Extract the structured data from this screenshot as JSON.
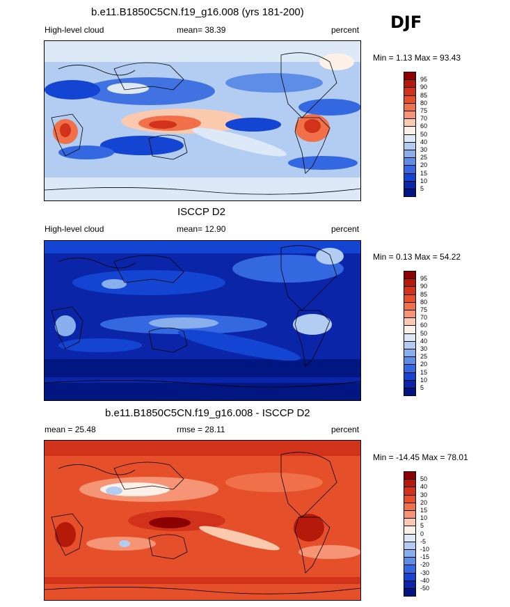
{
  "season": "DJF",
  "panels": [
    {
      "id": "model",
      "title": "b.e11.B1850C5CN.f19_g16.008 (yrs 181-200)",
      "left_label": "High-level cloud",
      "center_label": "mean=  38.39",
      "right_label": "percent",
      "minmax": "Min =   1.13 Max =  93.43",
      "colorbar": {
        "labels": [
          "95",
          "90",
          "85",
          "80",
          "75",
          "70",
          "60",
          "50",
          "40",
          "30",
          "25",
          "20",
          "15",
          "10",
          "5"
        ],
        "colors": [
          "#8b0000",
          "#b4190a",
          "#d2321a",
          "#e5502b",
          "#f0704a",
          "#f59575",
          "#fbc9ad",
          "#fdf0e6",
          "#dde9f7",
          "#b3cdf2",
          "#89afec",
          "#5d8de6",
          "#3468e0",
          "#1445d2",
          "#0a25a8",
          "#001680"
        ]
      }
    },
    {
      "id": "obs",
      "title": "ISCCP D2",
      "left_label": "High-level cloud",
      "center_label": "mean=  12.90",
      "right_label": "percent",
      "minmax": "Min =   0.13 Max =  54.22",
      "colorbar": {
        "labels": [
          "95",
          "90",
          "85",
          "80",
          "75",
          "70",
          "60",
          "50",
          "40",
          "30",
          "25",
          "20",
          "15",
          "10",
          "5"
        ],
        "colors": [
          "#8b0000",
          "#b4190a",
          "#d2321a",
          "#e5502b",
          "#f0704a",
          "#f59575",
          "#fbc9ad",
          "#fdf0e6",
          "#dde9f7",
          "#b3cdf2",
          "#89afec",
          "#5d8de6",
          "#3468e0",
          "#1445d2",
          "#0a25a8",
          "#001680"
        ]
      }
    },
    {
      "id": "diff",
      "title": "b.e11.B1850C5CN.f19_g16.008 - ISCCP D2",
      "left_label": "mean =  25.48",
      "center_label": "rmse =  28.11",
      "right_label": "percent",
      "minmax": "Min = -14.45 Max =  78.01",
      "colorbar": {
        "labels": [
          "50",
          "40",
          "30",
          "20",
          "15",
          "10",
          "5",
          "0",
          "-5",
          "-10",
          "-15",
          "-20",
          "-30",
          "-40",
          "-50"
        ],
        "colors": [
          "#8b0000",
          "#b4190a",
          "#d2321a",
          "#e5502b",
          "#f0704a",
          "#f59575",
          "#fbc9ad",
          "#fdf0e6",
          "#dde9f7",
          "#b3cdf2",
          "#89afec",
          "#5d8de6",
          "#3468e0",
          "#1445d2",
          "#0a25a8",
          "#001680"
        ]
      }
    }
  ]
}
